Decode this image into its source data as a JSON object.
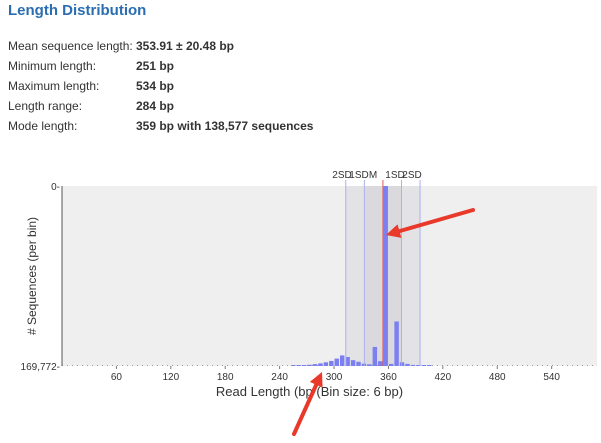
{
  "title": "Length Distribution",
  "stats": [
    {
      "label": "Mean sequence length:",
      "value": "353.91 ± 20.48 bp"
    },
    {
      "label": "Minimum length:",
      "value": "251 bp"
    },
    {
      "label": "Maximum length:",
      "value": "534 bp"
    },
    {
      "label": "Length range:",
      "value": "284 bp"
    },
    {
      "label": "Mode length:",
      "value": "359 bp with 138,577 sequences"
    }
  ],
  "colors": {
    "accent": "#2a6db0",
    "bar": "#7b7ff0",
    "mean_line": "#e05a5a",
    "sd_line": "#aab0ee",
    "sd_band": "#d4d4d8",
    "plot_bg": "#efeff0",
    "arrow": "#e8392a"
  },
  "chart_data": {
    "type": "bar",
    "xlabel": "Read Length (bp (Bin size: 6 bp)",
    "ylabel": "# Sequences (per bin)",
    "xlim": [
      0,
      590
    ],
    "ylim": [
      0,
      169772
    ],
    "x_ticks": [
      60,
      120,
      180,
      240,
      300,
      360,
      420,
      480,
      540
    ],
    "y_tick_labels": [
      "169,772-",
      "0-"
    ],
    "y_ticks": [
      0,
      169772
    ],
    "marker_labels": [
      "2SD",
      "1SD",
      "M",
      "1SD",
      "2SD"
    ],
    "markers": {
      "mean": 353.91,
      "sd": 20.48
    },
    "bin_starts": [
      252,
      258,
      264,
      270,
      276,
      282,
      288,
      294,
      300,
      306,
      312,
      318,
      324,
      330,
      336,
      342,
      348,
      354,
      360,
      366,
      372,
      378,
      384,
      390,
      396,
      402
    ],
    "values": [
      300,
      500,
      800,
      1200,
      1800,
      2500,
      3500,
      4800,
      7000,
      10000,
      8500,
      5500,
      4000,
      2200,
      1600,
      18000,
      4500,
      169772,
      2000,
      42000,
      3500,
      2000,
      1000,
      600,
      300,
      200
    ]
  }
}
